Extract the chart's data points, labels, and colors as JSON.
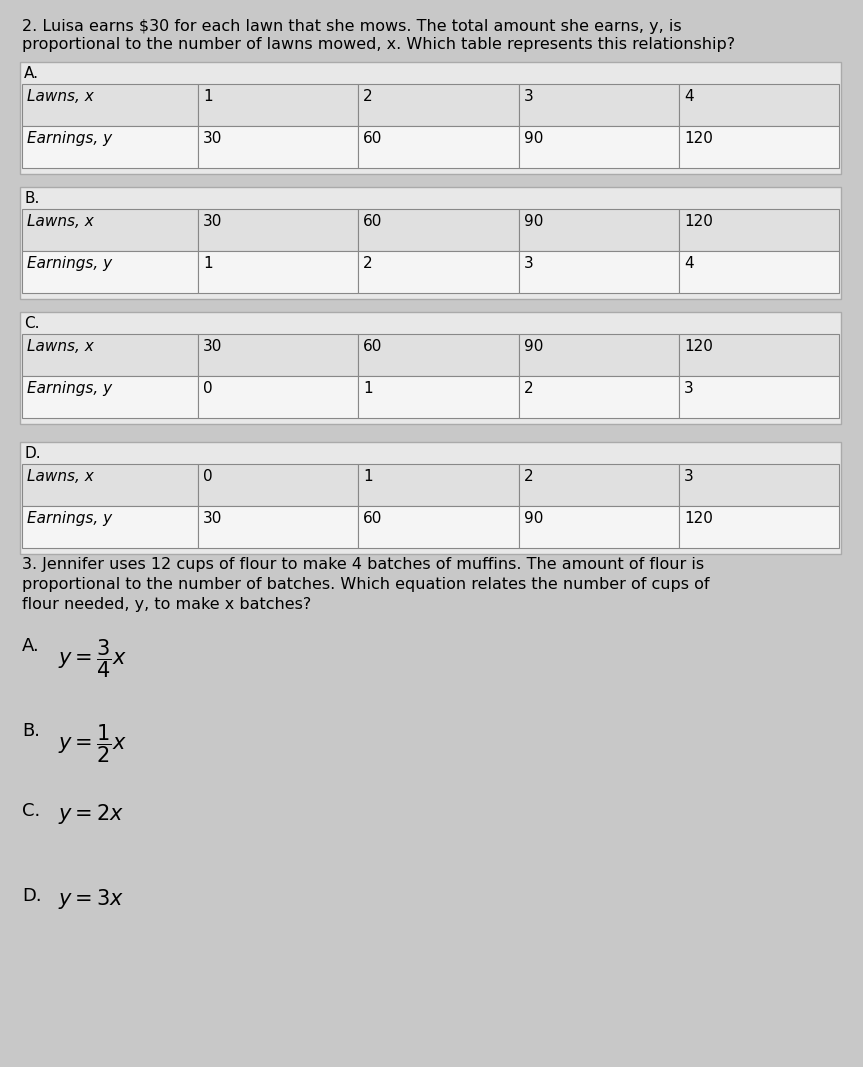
{
  "bg_color": "#c8c8c8",
  "table_outer_bg": "#e8e8e8",
  "table_row1_bg": "#e0e0e0",
  "table_row2_bg": "#f5f5f5",
  "q2_line1": "2. Luisa earns $30 for each lawn that she mows. The total amount she earns, y, is",
  "q2_line2": "proportional to the number of lawns mowed, x. Which table represents this relationship?",
  "q3_line1": "3. Jennifer uses 12 cups of flour to make 4 batches of muffins. The amount of flour is",
  "q3_line2": "proportional to the number of batches. Which equation relates the number of cups of",
  "q3_line3": "flour needed, y, to make x batches?",
  "tables": [
    {
      "label": "A.",
      "row1": [
        "Lawns, x",
        "1",
        "2",
        "3",
        "4"
      ],
      "row2": [
        "Earnings, y",
        "30",
        "60",
        "90",
        "120"
      ]
    },
    {
      "label": "B.",
      "row1": [
        "Lawns, x",
        "30",
        "60",
        "90",
        "120"
      ],
      "row2": [
        "Earnings, y",
        "1",
        "2",
        "3",
        "4"
      ]
    },
    {
      "label": "C.",
      "row1": [
        "Lawns, x",
        "30",
        "60",
        "90",
        "120"
      ],
      "row2": [
        "Earnings, y",
        "0",
        "1",
        "2",
        "3"
      ]
    },
    {
      "label": "D.",
      "row1": [
        "Lawns, x",
        "0",
        "1",
        "2",
        "3"
      ],
      "row2": [
        "Earnings, y",
        "30",
        "60",
        "90",
        "120"
      ]
    }
  ],
  "ans_labels": [
    "A.",
    "B.",
    "C.",
    "D."
  ],
  "ans_latex": [
    "$y=\\dfrac{3}{4}x$",
    "$y=\\dfrac{1}{2}x$",
    "$y = 2x$",
    "$y = 3x$"
  ],
  "font_size_q": 11.5,
  "font_size_table": 11,
  "font_size_label": 11,
  "font_size_ans": 13
}
